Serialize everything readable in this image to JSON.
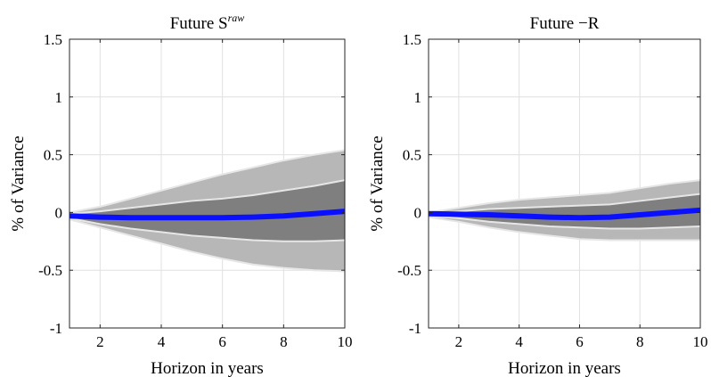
{
  "chart_data": [
    {
      "type": "area",
      "title": "Future S",
      "title_sup": "raw",
      "xlabel": "Horizon in years",
      "ylabel": "% of Variance",
      "xlim": [
        1,
        10
      ],
      "ylim": [
        -1,
        1.5
      ],
      "xticks": [
        2,
        4,
        6,
        8,
        10
      ],
      "yticks": [
        -1,
        -0.5,
        0,
        0.5,
        1,
        1.5
      ],
      "ytick_labels": [
        "-1",
        "-0.5",
        "0",
        "0.5",
        "1",
        "1.5"
      ],
      "grid": true,
      "colors": {
        "outer_band": "#b3b3b3",
        "inner_band": "#7f7f7f",
        "band_edge": "#e6e6e6",
        "median": "#0a10ff"
      },
      "x": [
        1,
        2,
        3,
        4,
        5,
        6,
        7,
        8,
        9,
        10
      ],
      "series": [
        {
          "role": "outer_upper",
          "values": [
            0.0,
            0.05,
            0.12,
            0.19,
            0.26,
            0.33,
            0.39,
            0.45,
            0.5,
            0.54
          ]
        },
        {
          "role": "inner_upper",
          "values": [
            -0.01,
            0.01,
            0.04,
            0.07,
            0.1,
            0.12,
            0.15,
            0.19,
            0.23,
            0.28
          ]
        },
        {
          "role": "median",
          "values": [
            -0.03,
            -0.04,
            -0.045,
            -0.045,
            -0.045,
            -0.045,
            -0.04,
            -0.03,
            -0.01,
            0.01
          ]
        },
        {
          "role": "inner_lower",
          "values": [
            -0.05,
            -0.1,
            -0.14,
            -0.17,
            -0.2,
            -0.22,
            -0.24,
            -0.25,
            -0.25,
            -0.24
          ]
        },
        {
          "role": "outer_lower",
          "values": [
            -0.06,
            -0.13,
            -0.2,
            -0.27,
            -0.34,
            -0.4,
            -0.45,
            -0.48,
            -0.5,
            -0.51
          ]
        }
      ]
    },
    {
      "type": "area",
      "title": "Future −R",
      "title_sup": "",
      "xlabel": "Horizon in years",
      "ylabel": "% of Variance",
      "xlim": [
        1,
        10
      ],
      "ylim": [
        -1,
        1.5
      ],
      "xticks": [
        2,
        4,
        6,
        8,
        10
      ],
      "yticks": [
        -1,
        -0.5,
        0,
        0.5,
        1,
        1.5
      ],
      "ytick_labels": [
        "-1",
        "-0.5",
        "0",
        "0.5",
        "1",
        "1.5"
      ],
      "grid": true,
      "colors": {
        "outer_band": "#b3b3b3",
        "inner_band": "#7f7f7f",
        "band_edge": "#e6e6e6",
        "median": "#0a10ff"
      },
      "x": [
        1,
        2,
        3,
        4,
        5,
        6,
        7,
        8,
        9,
        10
      ],
      "series": [
        {
          "role": "outer_upper",
          "values": [
            0.0,
            0.04,
            0.08,
            0.11,
            0.13,
            0.15,
            0.17,
            0.21,
            0.25,
            0.28
          ]
        },
        {
          "role": "inner_upper",
          "values": [
            -0.01,
            0.01,
            0.03,
            0.04,
            0.05,
            0.06,
            0.07,
            0.1,
            0.13,
            0.16
          ]
        },
        {
          "role": "median",
          "values": [
            -0.01,
            -0.015,
            -0.02,
            -0.03,
            -0.04,
            -0.045,
            -0.04,
            -0.02,
            0.0,
            0.02
          ]
        },
        {
          "role": "inner_lower",
          "values": [
            -0.03,
            -0.05,
            -0.08,
            -0.1,
            -0.12,
            -0.13,
            -0.14,
            -0.14,
            -0.13,
            -0.12
          ]
        },
        {
          "role": "outer_lower",
          "values": [
            -0.04,
            -0.08,
            -0.13,
            -0.17,
            -0.2,
            -0.23,
            -0.24,
            -0.24,
            -0.24,
            -0.24
          ]
        }
      ]
    }
  ]
}
